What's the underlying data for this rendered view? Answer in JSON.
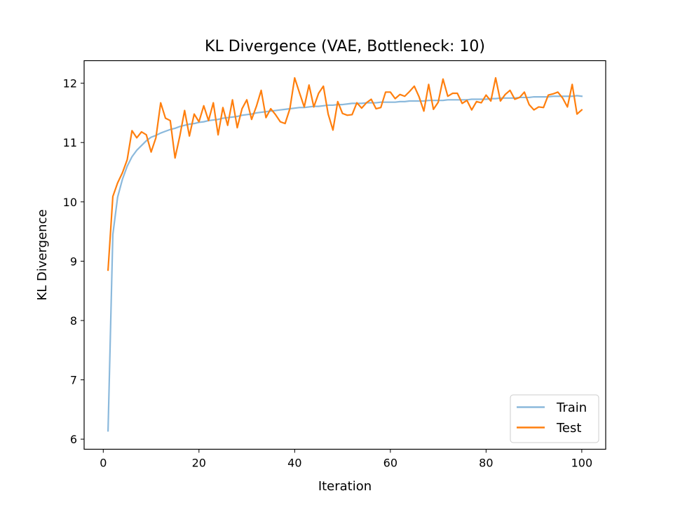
{
  "chart_data": {
    "type": "line",
    "title": "KL Divergence (VAE, Bottleneck: 10)",
    "xlabel": "Iteration",
    "ylabel": "KL Divergence",
    "xlim": [
      -4,
      105
    ],
    "ylim": [
      5.83,
      12.38
    ],
    "xticks": [
      0,
      20,
      40,
      60,
      80,
      100
    ],
    "yticks": [
      6,
      7,
      8,
      9,
      10,
      11,
      12
    ],
    "grid": false,
    "legend_position": "bottom-right",
    "x": [
      1,
      2,
      3,
      4,
      5,
      6,
      7,
      8,
      9,
      10,
      11,
      12,
      13,
      14,
      15,
      16,
      17,
      18,
      19,
      20,
      21,
      22,
      23,
      24,
      25,
      26,
      27,
      28,
      29,
      30,
      31,
      32,
      33,
      34,
      35,
      36,
      37,
      38,
      39,
      40,
      41,
      42,
      43,
      44,
      45,
      46,
      47,
      48,
      49,
      50,
      51,
      52,
      53,
      54,
      55,
      56,
      57,
      58,
      59,
      60,
      61,
      62,
      63,
      64,
      65,
      66,
      67,
      68,
      69,
      70,
      71,
      72,
      73,
      74,
      75,
      76,
      77,
      78,
      79,
      80,
      81,
      82,
      83,
      84,
      85,
      86,
      87,
      88,
      89,
      90,
      91,
      92,
      93,
      94,
      95,
      96,
      97,
      98,
      99,
      100
    ],
    "series": [
      {
        "name": "Train",
        "color": "#8bb9dc",
        "values": [
          6.14,
          9.45,
          10.08,
          10.38,
          10.6,
          10.76,
          10.87,
          10.95,
          11.03,
          11.09,
          11.12,
          11.16,
          11.19,
          11.22,
          11.24,
          11.27,
          11.29,
          11.31,
          11.32,
          11.34,
          11.35,
          11.37,
          11.38,
          11.39,
          11.41,
          11.42,
          11.43,
          11.44,
          11.46,
          11.47,
          11.48,
          11.5,
          11.51,
          11.52,
          11.53,
          11.54,
          11.55,
          11.56,
          11.57,
          11.58,
          11.59,
          11.59,
          11.6,
          11.61,
          11.61,
          11.62,
          11.63,
          11.63,
          11.64,
          11.64,
          11.65,
          11.66,
          11.66,
          11.66,
          11.67,
          11.67,
          11.67,
          11.68,
          11.68,
          11.68,
          11.68,
          11.69,
          11.69,
          11.7,
          11.7,
          11.7,
          11.7,
          11.71,
          11.71,
          11.71,
          11.71,
          11.72,
          11.72,
          11.72,
          11.72,
          11.72,
          11.73,
          11.73,
          11.73,
          11.73,
          11.74,
          11.74,
          11.75,
          11.75,
          11.75,
          11.75,
          11.76,
          11.76,
          11.76,
          11.77,
          11.77,
          11.77,
          11.77,
          11.78,
          11.78,
          11.78,
          11.78,
          11.78,
          11.79,
          11.78
        ]
      },
      {
        "name": "Test",
        "color": "#ff7f0e",
        "values": [
          8.85,
          10.09,
          10.32,
          10.49,
          10.71,
          11.2,
          11.08,
          11.18,
          11.13,
          10.84,
          11.08,
          11.67,
          11.41,
          11.37,
          10.74,
          11.11,
          11.54,
          11.11,
          11.48,
          11.35,
          11.62,
          11.37,
          11.67,
          11.13,
          11.59,
          11.29,
          11.72,
          11.25,
          11.57,
          11.72,
          11.39,
          11.61,
          11.88,
          11.42,
          11.57,
          11.47,
          11.35,
          11.32,
          11.57,
          12.09,
          11.84,
          11.6,
          11.97,
          11.6,
          11.83,
          11.95,
          11.48,
          11.21,
          11.69,
          11.49,
          11.46,
          11.47,
          11.67,
          11.58,
          11.67,
          11.73,
          11.57,
          11.59,
          11.85,
          11.85,
          11.74,
          11.81,
          11.78,
          11.86,
          11.95,
          11.77,
          11.53,
          11.98,
          11.56,
          11.68,
          12.07,
          11.78,
          11.83,
          11.83,
          11.66,
          11.71,
          11.55,
          11.69,
          11.67,
          11.8,
          11.7,
          12.09,
          11.7,
          11.81,
          11.88,
          11.73,
          11.76,
          11.85,
          11.64,
          11.55,
          11.6,
          11.59,
          11.8,
          11.82,
          11.85,
          11.75,
          11.6,
          11.98,
          11.48,
          11.55
        ]
      }
    ]
  }
}
